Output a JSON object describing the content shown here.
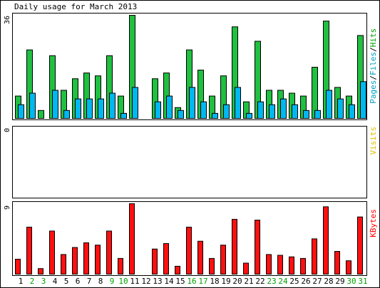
{
  "chart_data": {
    "type": "bar",
    "title": "Daily usage for March 2013",
    "panels": [
      {
        "id": "hits",
        "ytick": "36",
        "ymax": 36,
        "legend": [
          {
            "text": "Pages",
            "color": "#00a0c0"
          },
          {
            "text": "/",
            "color": "#000000"
          },
          {
            "text": "Files",
            "color": "#00a0c0"
          },
          {
            "text": "/",
            "color": "#000000"
          },
          {
            "text": "Hits",
            "color": "#00a000"
          }
        ],
        "series": [
          {
            "name": "Hits",
            "color": "#20c040",
            "values": [
              8,
              24,
              3,
              22,
              10,
              14,
              16,
              15,
              22,
              8,
              36,
              0,
              14,
              16,
              4,
              24,
              17,
              8,
              15,
              32,
              6,
              27,
              10,
              10,
              9,
              8,
              18,
              34,
              11,
              8,
              29
            ]
          },
          {
            "name": "Files",
            "color": "#00b8f0",
            "values": [
              5,
              9,
              0,
              10,
              3,
              7,
              7,
              7,
              9,
              2,
              11,
              0,
              6,
              8,
              3,
              11,
              6,
              2,
              5,
              11,
              2,
              6,
              5,
              7,
              5,
              3,
              3,
              10,
              7,
              5,
              13
            ]
          }
        ]
      },
      {
        "id": "visits",
        "ytick": "0",
        "ymax": 1,
        "legend": [
          {
            "text": "Visits",
            "color": "#e0c000"
          }
        ],
        "series": []
      },
      {
        "id": "kbytes",
        "ytick": "9",
        "ymax": 9,
        "legend": [
          {
            "text": "KBytes",
            "color": "#ff0000"
          }
        ],
        "series": [
          {
            "name": "KBytes",
            "color": "#ff1010",
            "values": [
              2,
              6.1,
              0.8,
              5.6,
              2.6,
              3.5,
              4.1,
              3.8,
              5.6,
              2.1,
              9.1,
              0,
              3.3,
              4,
              1.1,
              6.1,
              4.3,
              2.1,
              3.8,
              7.1,
              1.5,
              7,
              2.6,
              2.5,
              2.3,
              2.1,
              4.6,
              8.7,
              3,
              1.8,
              7.4
            ]
          }
        ]
      }
    ],
    "days": [
      "1",
      "2",
      "3",
      "4",
      "5",
      "6",
      "7",
      "8",
      "9",
      "10",
      "11",
      "12",
      "13",
      "14",
      "15",
      "16",
      "17",
      "18",
      "19",
      "20",
      "21",
      "22",
      "23",
      "24",
      "25",
      "26",
      "27",
      "28",
      "29",
      "30",
      "31"
    ],
    "weekend_days": [
      "2",
      "3",
      "9",
      "10",
      "16",
      "17",
      "23",
      "24",
      "30",
      "31"
    ],
    "colors": {
      "weekday_label": "#000000",
      "weekend_label": "#00a000",
      "border": "#000000",
      "background": "#ffffff"
    }
  }
}
